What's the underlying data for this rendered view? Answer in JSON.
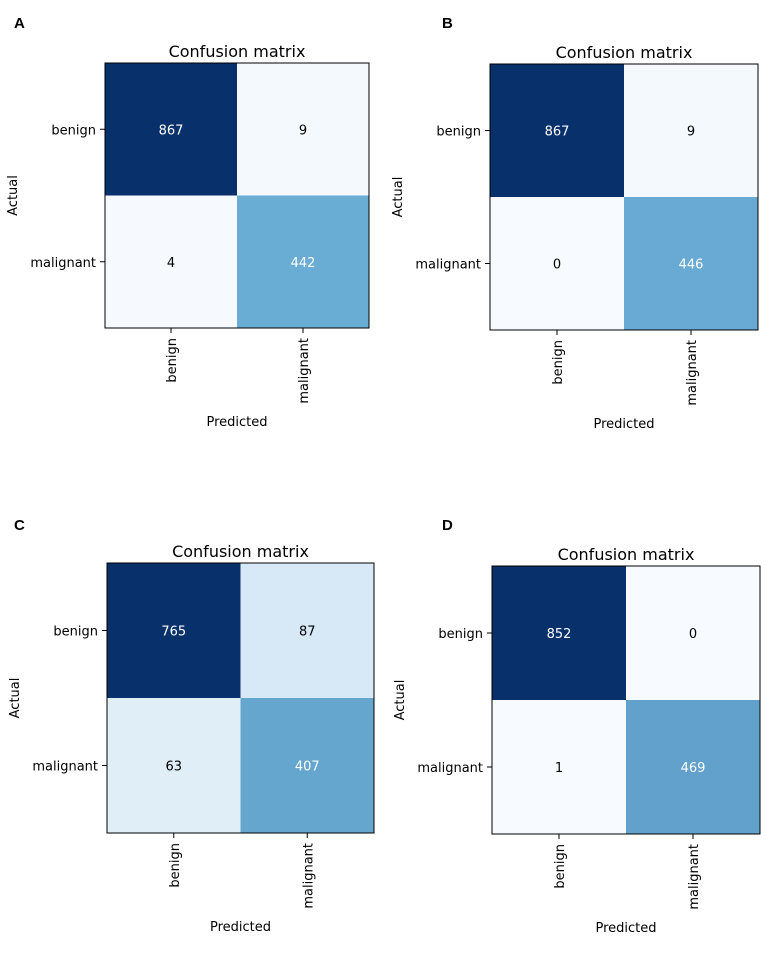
{
  "chart_data": [
    {
      "panel": "A",
      "type": "heatmap",
      "title": "Confusion matrix",
      "xlabel": "Predicted",
      "ylabel": "Actual",
      "x_tick_labels": [
        "benign",
        "malignant"
      ],
      "y_tick_labels": [
        "benign",
        "malignant"
      ],
      "matrix": [
        [
          867,
          9
        ],
        [
          4,
          442
        ]
      ],
      "colormap": "Blues"
    },
    {
      "panel": "B",
      "type": "heatmap",
      "title": "Confusion matrix",
      "xlabel": "Predicted",
      "ylabel": "Actual",
      "x_tick_labels": [
        "benign",
        "malignant"
      ],
      "y_tick_labels": [
        "benign",
        "malignant"
      ],
      "matrix": [
        [
          867,
          9
        ],
        [
          0,
          446
        ]
      ],
      "colormap": "Blues"
    },
    {
      "panel": "C",
      "type": "heatmap",
      "title": "Confusion matrix",
      "xlabel": "Predicted",
      "ylabel": "Actual",
      "x_tick_labels": [
        "benign",
        "malignant"
      ],
      "y_tick_labels": [
        "benign",
        "malignant"
      ],
      "matrix": [
        [
          765,
          87
        ],
        [
          63,
          407
        ]
      ],
      "colormap": "Blues"
    },
    {
      "panel": "D",
      "type": "heatmap",
      "title": "Confusion matrix",
      "xlabel": "Predicted",
      "ylabel": "Actual",
      "x_tick_labels": [
        "benign",
        "malignant"
      ],
      "y_tick_labels": [
        "benign",
        "malignant"
      ],
      "matrix": [
        [
          852,
          0
        ],
        [
          1,
          469
        ]
      ],
      "colormap": "Blues"
    }
  ],
  "colors": {
    "low": "#f7fbff",
    "mid": "#6baed6",
    "high": "#08306b",
    "text_dark": "#000000",
    "text_light": "#ffffff"
  }
}
